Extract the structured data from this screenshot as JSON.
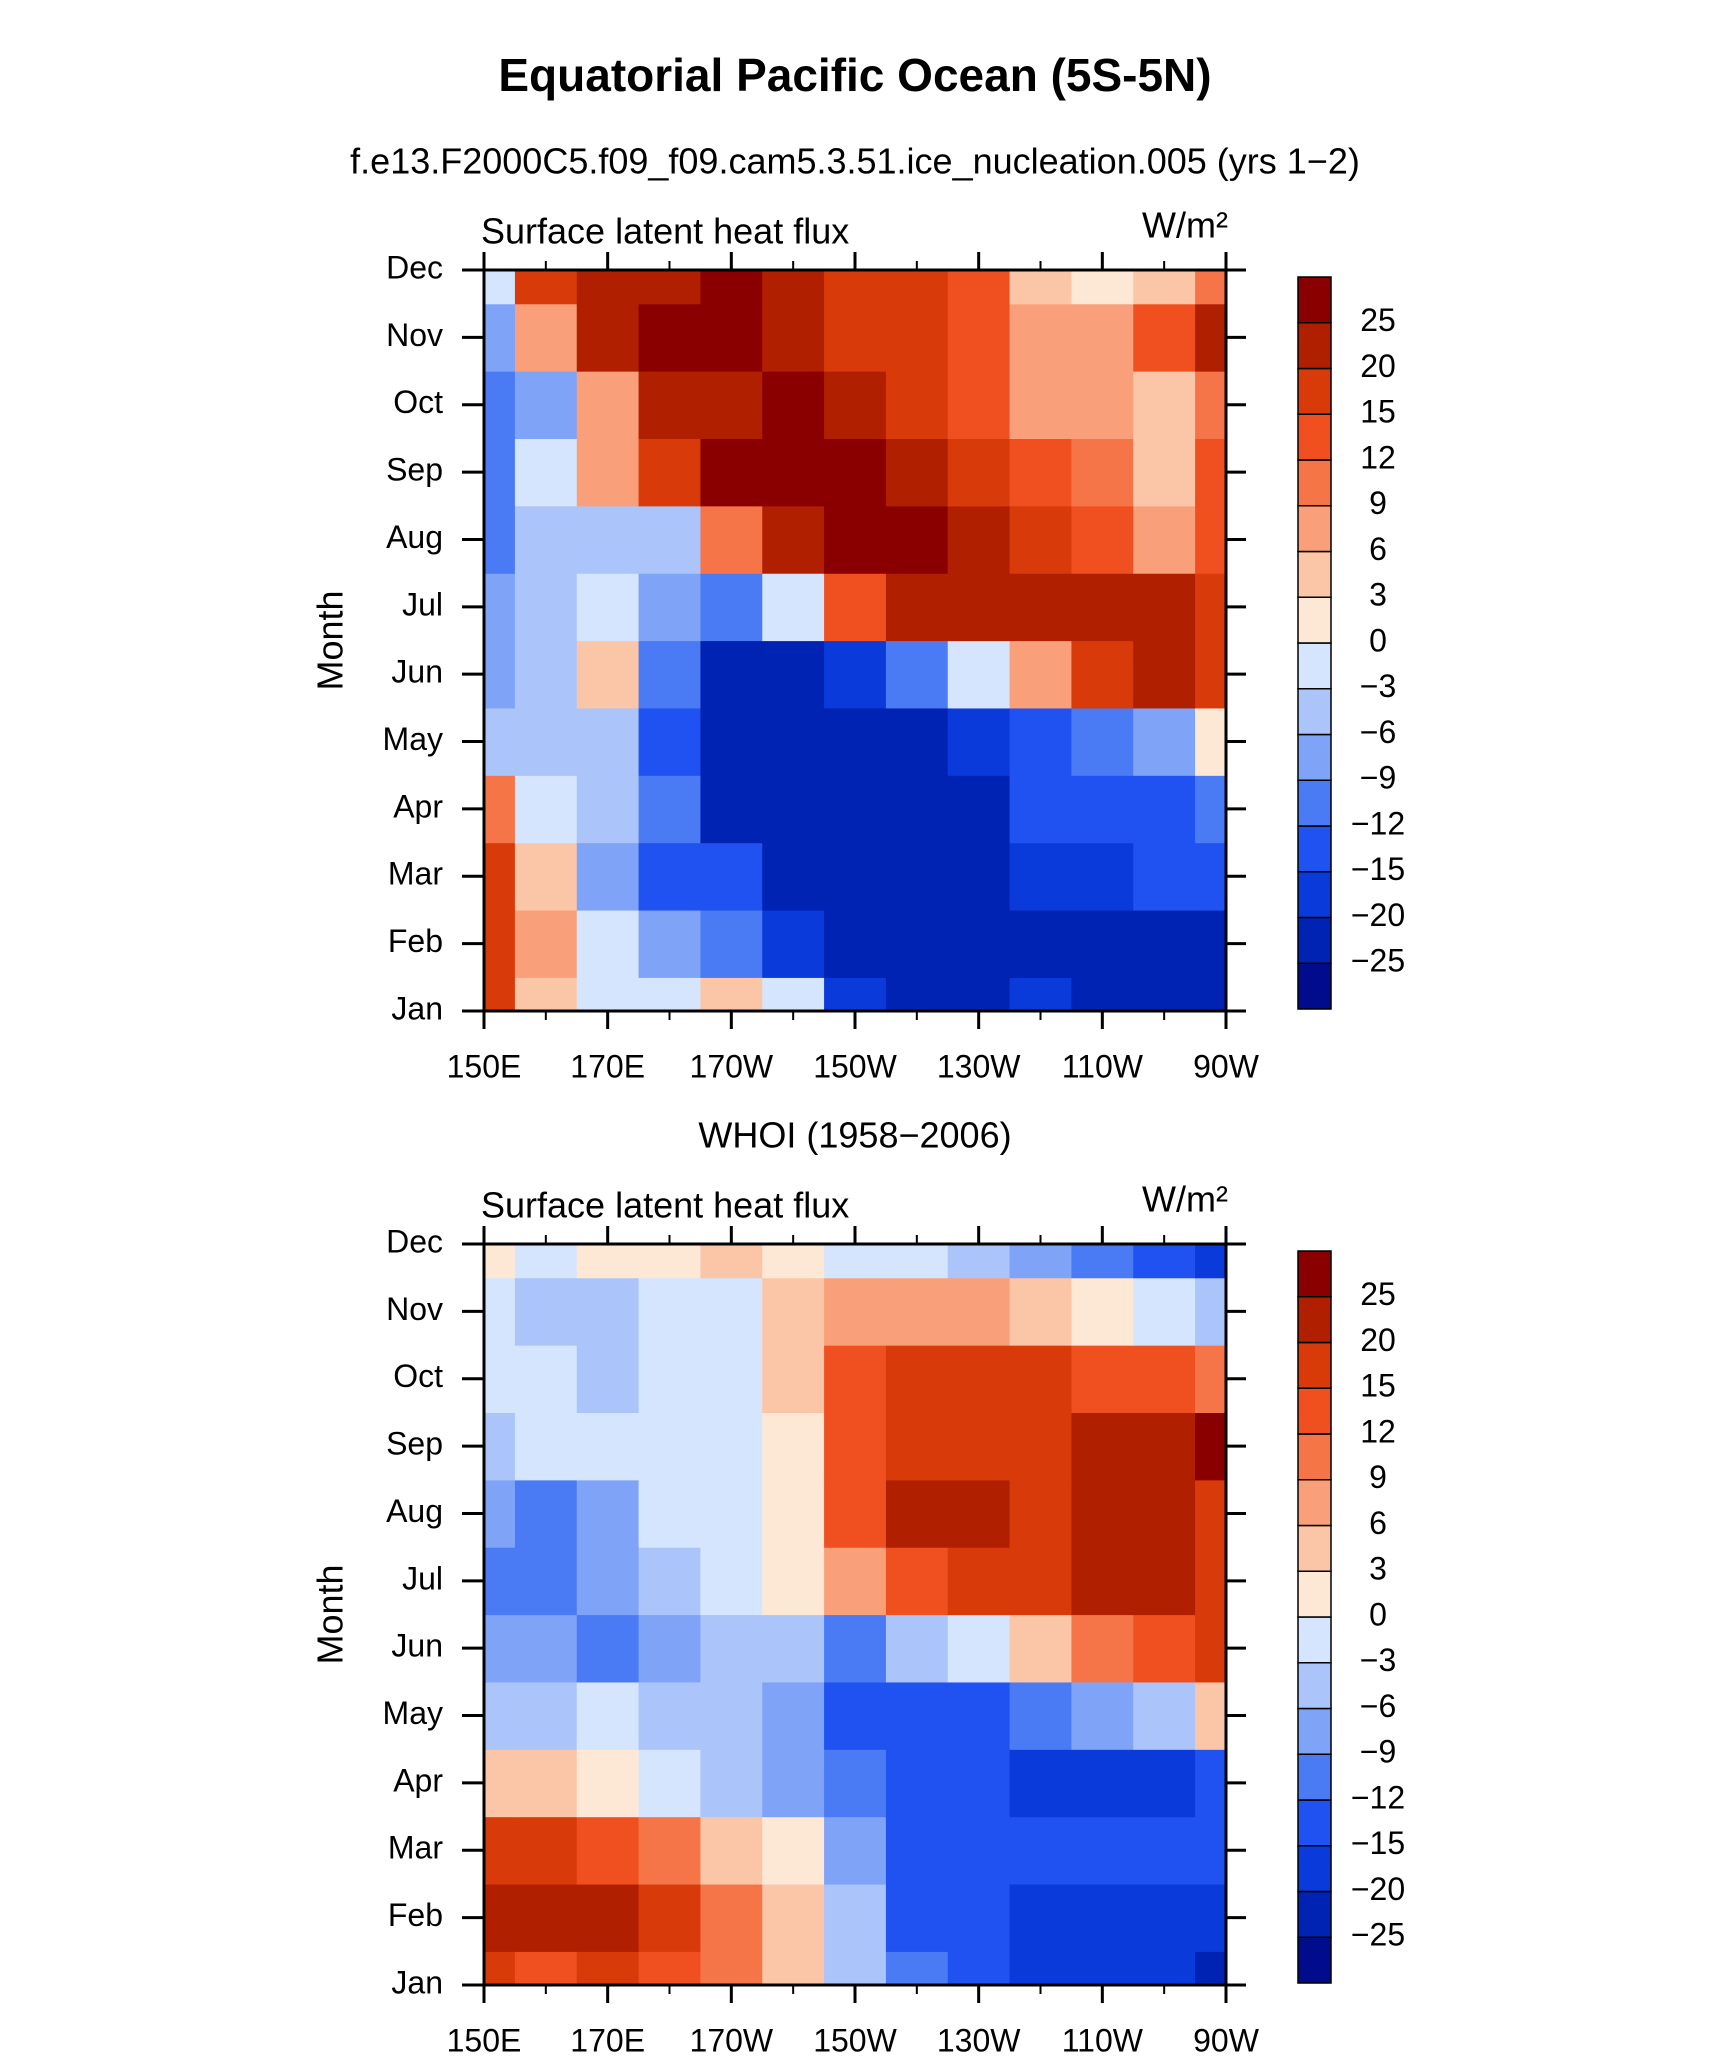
{
  "chart_data": [
    {
      "type": "heatmap",
      "title": "Equatorial Pacific Ocean (5S-5N)",
      "subtitle": "f.e13.F2000C5.f09_f09.cam5.3.51.ice_nucleation.005 (yrs 1−2)",
      "left_label": "Surface latent heat flux",
      "right_label": "W/m²",
      "y_label": "Month",
      "x": [
        150,
        160,
        170,
        180,
        190,
        200,
        210,
        220,
        230,
        240,
        250,
        260,
        270
      ],
      "xlim": [
        150,
        270
      ],
      "xticks": [
        {
          "value": 150,
          "label": "150E"
        },
        {
          "value": 170,
          "label": "170E"
        },
        {
          "value": 190,
          "label": "170W"
        },
        {
          "value": 210,
          "label": "150W"
        },
        {
          "value": 230,
          "label": "130W"
        },
        {
          "value": 250,
          "label": "110W"
        },
        {
          "value": 270,
          "label": "90W"
        }
      ],
      "xminorticks": [
        160,
        180,
        200,
        220,
        240,
        260
      ],
      "categories": [
        "Jan",
        "Feb",
        "Mar",
        "Apr",
        "May",
        "Jun",
        "Jul",
        "Aug",
        "Sep",
        "Oct",
        "Nov",
        "Dec"
      ],
      "z": [
        [
          15,
          3,
          -3,
          -3,
          3,
          -3,
          -20,
          -25,
          -25,
          -20,
          -25,
          -25,
          -25
        ],
        [
          15,
          6,
          -3,
          -9,
          -12,
          -20,
          -25,
          -25,
          -25,
          -25,
          -25,
          -25,
          -25
        ],
        [
          15,
          3,
          -9,
          -15,
          -15,
          -25,
          -25,
          -25,
          -25,
          -20,
          -20,
          -15,
          -15
        ],
        [
          9,
          -3,
          -6,
          -12,
          -25,
          -25,
          -25,
          -25,
          -25,
          -15,
          -15,
          -15,
          -12
        ],
        [
          -6,
          -6,
          -6,
          -15,
          -25,
          -25,
          -25,
          -25,
          -20,
          -15,
          -12,
          -9,
          0
        ],
        [
          -9,
          -6,
          3,
          -12,
          -25,
          -25,
          -20,
          -12,
          -3,
          6,
          15,
          20,
          15
        ],
        [
          -9,
          -6,
          -3,
          -9,
          -12,
          -3,
          12,
          20,
          20,
          20,
          20,
          20,
          15
        ],
        [
          -12,
          -6,
          -6,
          -6,
          9,
          20,
          25,
          25,
          20,
          15,
          12,
          6,
          12
        ],
        [
          -12,
          -3,
          6,
          15,
          25,
          25,
          25,
          20,
          15,
          12,
          9,
          3,
          12
        ],
        [
          -12,
          -9,
          6,
          20,
          20,
          25,
          20,
          15,
          12,
          6,
          6,
          3,
          9
        ],
        [
          -9,
          6,
          20,
          25,
          25,
          20,
          15,
          15,
          12,
          6,
          6,
          12,
          20
        ],
        [
          -3,
          15,
          20,
          20,
          25,
          20,
          15,
          15,
          12,
          3,
          0,
          3,
          9
        ]
      ],
      "levels": [
        {
          "value": -25,
          "label": "−25"
        },
        {
          "value": -20,
          "label": "−20"
        },
        {
          "value": -15,
          "label": "−15"
        },
        {
          "value": -12,
          "label": "−12"
        },
        {
          "value": -9,
          "label": "−9"
        },
        {
          "value": -6,
          "label": "−6"
        },
        {
          "value": -3,
          "label": "−3"
        },
        0,
        3,
        6,
        9,
        12,
        15,
        20,
        25
      ],
      "colors": [
        "#000c8c",
        "#0023b3",
        "#0a3ad9",
        "#1f52f0",
        "#4a7bf5",
        "#7fa3f7",
        "#abc4fa",
        "#d5e5fd",
        "#fde8d5",
        "#fbc6a8",
        "#f9a07a",
        "#f67548",
        "#f0501f",
        "#d93a0a",
        "#b02000",
        "#8a0000"
      ]
    },
    {
      "type": "heatmap",
      "subtitle": "WHOI (1958−2006)",
      "left_label": "Surface latent heat flux",
      "right_label": "W/m²",
      "y_label": "Month",
      "x": [
        150,
        160,
        170,
        180,
        190,
        200,
        210,
        220,
        230,
        240,
        250,
        260,
        270
      ],
      "xlim": [
        150,
        270
      ],
      "xticks": [
        {
          "value": 150,
          "label": "150E"
        },
        {
          "value": 170,
          "label": "170E"
        },
        {
          "value": 190,
          "label": "170W"
        },
        {
          "value": 210,
          "label": "150W"
        },
        {
          "value": 230,
          "label": "130W"
        },
        {
          "value": 250,
          "label": "110W"
        },
        {
          "value": 270,
          "label": "90W"
        }
      ],
      "xminorticks": [
        160,
        180,
        200,
        220,
        240,
        260
      ],
      "categories": [
        "Jan",
        "Feb",
        "Mar",
        "Apr",
        "May",
        "Jun",
        "Jul",
        "Aug",
        "Sep",
        "Oct",
        "Nov",
        "Dec"
      ],
      "z": [
        [
          15,
          12,
          15,
          12,
          9,
          3,
          -6,
          -12,
          -15,
          -20,
          -20,
          -20,
          -25
        ],
        [
          20,
          20,
          20,
          15,
          9,
          3,
          -6,
          -15,
          -15,
          -20,
          -20,
          -20,
          -20
        ],
        [
          15,
          15,
          12,
          9,
          3,
          0,
          -9,
          -15,
          -15,
          -15,
          -15,
          -15,
          -15
        ],
        [
          3,
          3,
          0,
          -3,
          -6,
          -9,
          -12,
          -15,
          -15,
          -20,
          -20,
          -20,
          -15
        ],
        [
          -6,
          -6,
          -3,
          -6,
          -6,
          -9,
          -15,
          -15,
          -15,
          -12,
          -9,
          -6,
          3
        ],
        [
          -9,
          -9,
          -12,
          -9,
          -6,
          -6,
          -12,
          -6,
          -3,
          3,
          9,
          12,
          15
        ],
        [
          -12,
          -12,
          -9,
          -6,
          -3,
          0,
          6,
          12,
          15,
          15,
          20,
          20,
          15
        ],
        [
          -9,
          -12,
          -9,
          -3,
          -3,
          0,
          12,
          20,
          20,
          15,
          20,
          20,
          15
        ],
        [
          -6,
          -3,
          -3,
          -3,
          -3,
          0,
          12,
          15,
          15,
          15,
          20,
          20,
          25
        ],
        [
          -3,
          -3,
          -6,
          -3,
          -3,
          3,
          12,
          15,
          15,
          15,
          12,
          12,
          9
        ],
        [
          -3,
          -6,
          -6,
          -3,
          -3,
          3,
          6,
          6,
          6,
          3,
          0,
          -3,
          -6
        ],
        [
          0,
          -3,
          0,
          0,
          3,
          0,
          -3,
          -3,
          -6,
          -9,
          -12,
          -15,
          -20
        ]
      ],
      "levels": [
        {
          "value": -25,
          "label": "−25"
        },
        {
          "value": -20,
          "label": "−20"
        },
        {
          "value": -15,
          "label": "−15"
        },
        {
          "value": -12,
          "label": "−12"
        },
        {
          "value": -9,
          "label": "−9"
        },
        {
          "value": -6,
          "label": "−6"
        },
        {
          "value": -3,
          "label": "−3"
        },
        0,
        3,
        6,
        9,
        12,
        15,
        20,
        25
      ],
      "colors": [
        "#000c8c",
        "#0023b3",
        "#0a3ad9",
        "#1f52f0",
        "#4a7bf5",
        "#7fa3f7",
        "#abc4fa",
        "#d5e5fd",
        "#fde8d5",
        "#fbc6a8",
        "#f9a07a",
        "#f67548",
        "#f0501f",
        "#d93a0a",
        "#b02000",
        "#8a0000"
      ]
    }
  ]
}
